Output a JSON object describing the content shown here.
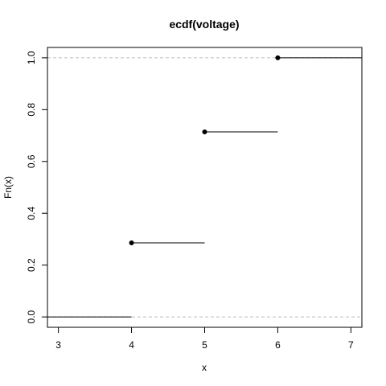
{
  "chart_data": {
    "type": "line",
    "title": "ecdf(voltage)",
    "xlabel": "x",
    "ylabel": "Fn(x)",
    "xlim": [
      2.85,
      7.15
    ],
    "ylim": [
      -0.04,
      1.04
    ],
    "x_ticks": [
      "3",
      "4",
      "5",
      "6",
      "7"
    ],
    "x_tick_values": [
      3,
      4,
      5,
      6,
      7
    ],
    "y_ticks": [
      "0.0",
      "0.2",
      "0.4",
      "0.6",
      "0.8",
      "1.0"
    ],
    "y_tick_values": [
      0,
      0.2,
      0.4,
      0.6,
      0.8,
      1.0
    ],
    "reference_lines": [
      0,
      1
    ],
    "steps": [
      {
        "x_start": 2.85,
        "x_end": 4,
        "y": 0,
        "point": false
      },
      {
        "x_start": 4,
        "x_end": 5,
        "y": 0.2857,
        "point": true
      },
      {
        "x_start": 5,
        "x_end": 6,
        "y": 0.7143,
        "point": true
      },
      {
        "x_start": 6,
        "x_end": 7.15,
        "y": 1.0,
        "point": true
      }
    ],
    "grid": false,
    "legend": "none"
  }
}
